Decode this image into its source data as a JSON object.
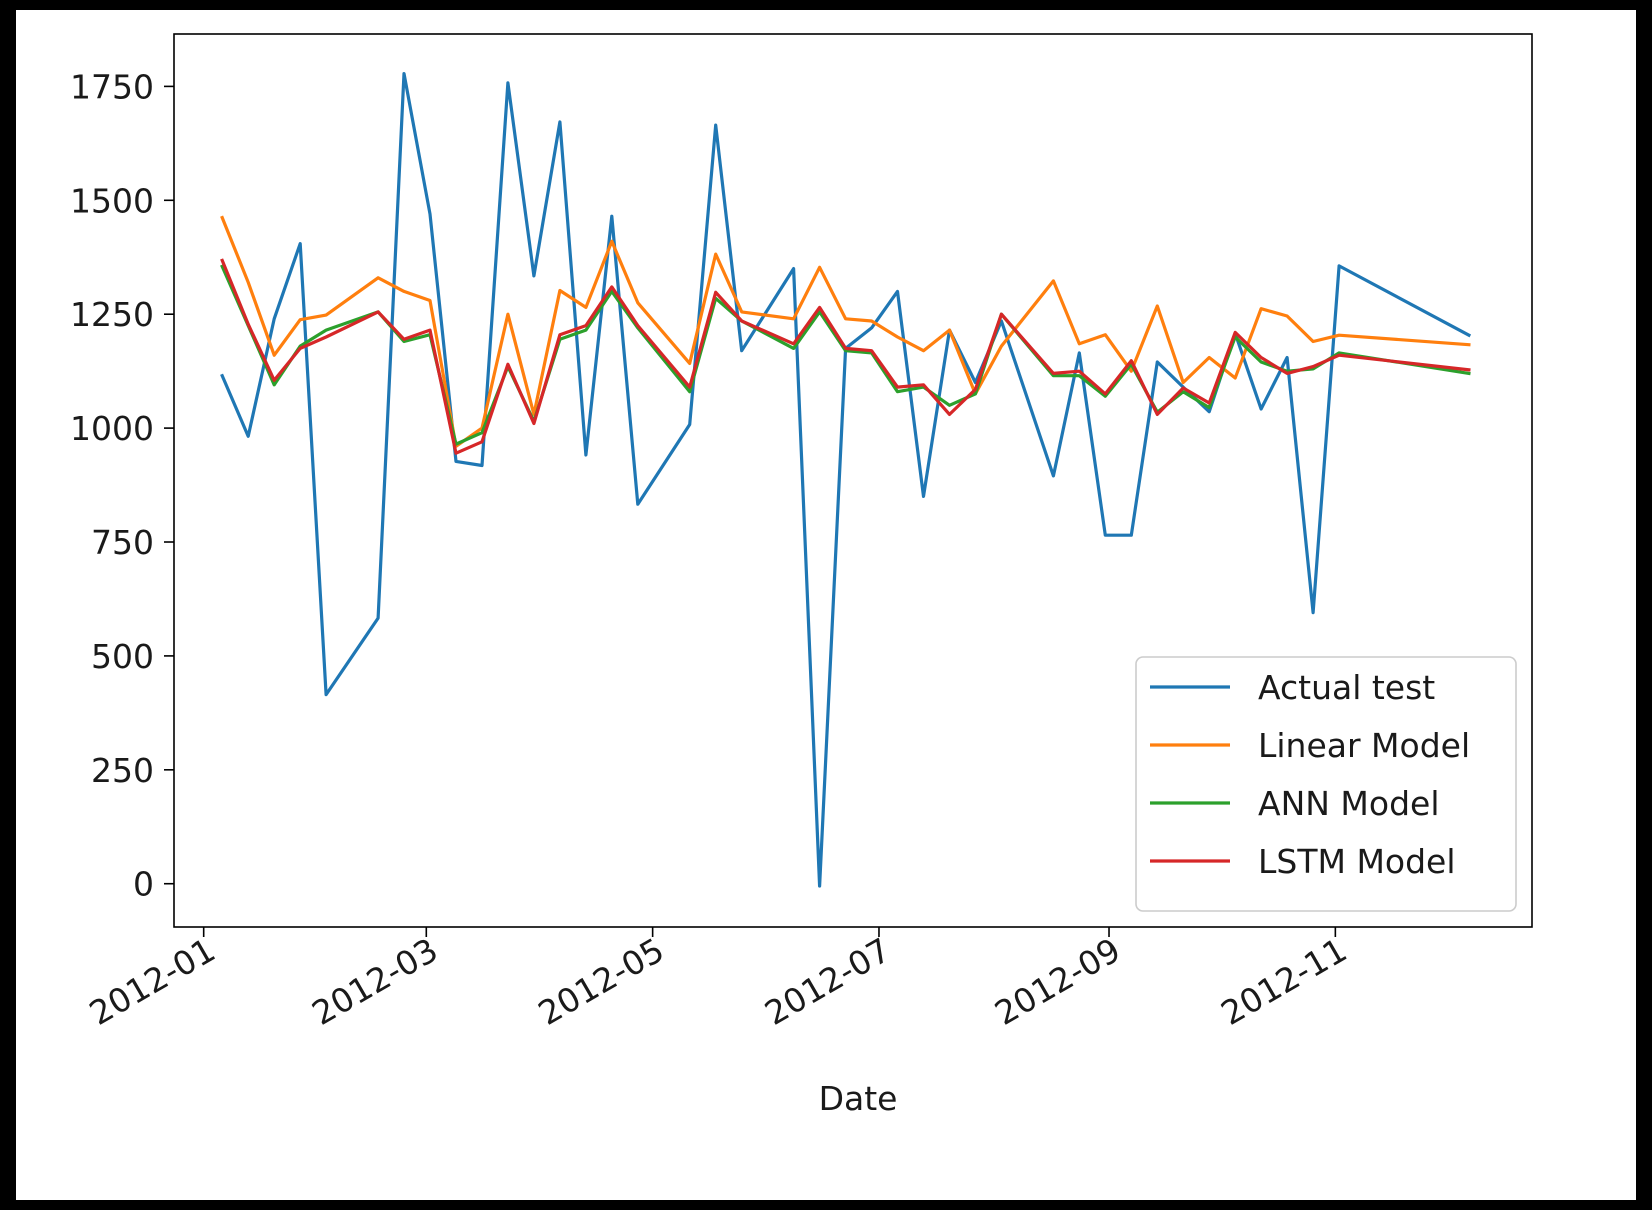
{
  "chart_data": {
    "type": "line",
    "title": "",
    "xlabel": "Date",
    "ylabel": "",
    "xlim": [
      "2011-12-24",
      "2012-12-24"
    ],
    "ylim": [
      -95,
      1865
    ],
    "x_ticks": [
      "2012-01-01",
      "2012-03-01",
      "2012-05-01",
      "2012-07-01",
      "2012-09-01",
      "2012-11-01"
    ],
    "x_tick_labels": [
      "2012-01",
      "2012-03",
      "2012-05",
      "2012-07",
      "2012-09",
      "2012-11"
    ],
    "y_ticks": [
      0,
      250,
      500,
      750,
      1000,
      1250,
      1500,
      1750
    ],
    "y_tick_labels": [
      "0",
      "250",
      "500",
      "750",
      "1000",
      "1250",
      "1500",
      "1750"
    ],
    "grid": false,
    "legend": {
      "position": "lower-right"
    },
    "x": [
      "2012-01-06",
      "2012-01-13",
      "2012-01-20",
      "2012-01-27",
      "2012-02-03",
      "2012-02-17",
      "2012-02-24",
      "2012-03-02",
      "2012-03-09",
      "2012-03-16",
      "2012-03-23",
      "2012-03-30",
      "2012-04-06",
      "2012-04-13",
      "2012-04-20",
      "2012-04-27",
      "2012-05-11",
      "2012-05-18",
      "2012-05-25",
      "2012-06-08",
      "2012-06-15",
      "2012-06-22",
      "2012-06-29",
      "2012-07-06",
      "2012-07-13",
      "2012-07-20",
      "2012-07-27",
      "2012-08-03",
      "2012-08-17",
      "2012-08-24",
      "2012-08-31",
      "2012-09-07",
      "2012-09-14",
      "2012-09-21",
      "2012-09-28",
      "2012-10-05",
      "2012-10-12",
      "2012-10-19",
      "2012-10-26",
      "2012-11-02",
      "2012-12-07"
    ],
    "series": [
      {
        "name": "Actual test",
        "color": "#1f77b4",
        "values": [
          1115,
          982,
          1240,
          1405,
          415,
          583,
          1778,
          1470,
          927,
          918,
          1758,
          1334,
          1672,
          941,
          1465,
          833,
          1008,
          1665,
          1170,
          1350,
          -5,
          1175,
          1220,
          1300,
          850,
          1215,
          1100,
          1235,
          895,
          1165,
          765,
          765,
          1145,
          1090,
          1036,
          1208,
          1042,
          1155,
          595,
          1356,
          1204
        ]
      },
      {
        "name": "Linear Model",
        "color": "#ff7f0e",
        "values": [
          1462,
          1320,
          1160,
          1238,
          1248,
          1330,
          1300,
          1280,
          960,
          1000,
          1250,
          1030,
          1302,
          1265,
          1410,
          1275,
          1142,
          1382,
          1255,
          1240,
          1353,
          1240,
          1235,
          1200,
          1170,
          1215,
          1075,
          1180,
          1323,
          1185,
          1205,
          1125,
          1268,
          1100,
          1155,
          1110,
          1262,
          1246,
          1190,
          1204,
          1183
        ]
      },
      {
        "name": "ANN Model",
        "color": "#2ca02c",
        "values": [
          1355,
          1225,
          1095,
          1180,
          1215,
          1255,
          1190,
          1205,
          965,
          990,
          1135,
          1015,
          1195,
          1215,
          1300,
          1220,
          1080,
          1285,
          1235,
          1175,
          1255,
          1170,
          1165,
          1080,
          1090,
          1050,
          1075,
          1250,
          1115,
          1115,
          1070,
          1140,
          1035,
          1080,
          1045,
          1200,
          1145,
          1125,
          1130,
          1165,
          1120
        ]
      },
      {
        "name": "LSTM Model",
        "color": "#d62728",
        "values": [
          1368,
          1228,
          1105,
          1175,
          1200,
          1255,
          1195,
          1215,
          945,
          970,
          1140,
          1010,
          1205,
          1225,
          1310,
          1225,
          1090,
          1298,
          1235,
          1185,
          1265,
          1175,
          1170,
          1090,
          1095,
          1030,
          1085,
          1250,
          1120,
          1125,
          1075,
          1148,
          1030,
          1088,
          1055,
          1210,
          1155,
          1120,
          1135,
          1160,
          1128
        ]
      }
    ]
  }
}
